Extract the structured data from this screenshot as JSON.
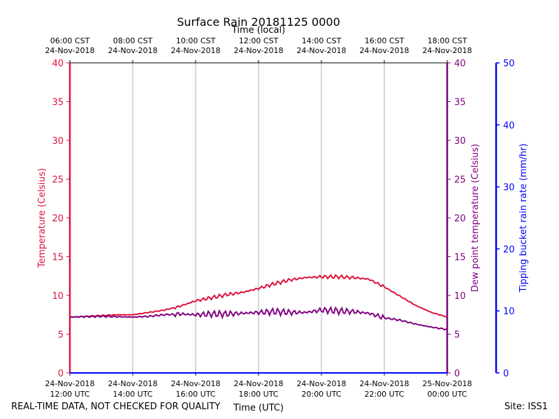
{
  "chart_data": {
    "type": "line",
    "title": "Surface Rain 20181125 0000",
    "top_axis_title": "Time (local)",
    "xlabel": "Time (UTC)",
    "top_ticks": [
      {
        "time": "06:00 CST",
        "date": "24-Nov-2018"
      },
      {
        "time": "08:00 CST",
        "date": "24-Nov-2018"
      },
      {
        "time": "10:00 CST",
        "date": "24-Nov-2018"
      },
      {
        "time": "12:00 CST",
        "date": "24-Nov-2018"
      },
      {
        "time": "14:00 CST",
        "date": "24-Nov-2018"
      },
      {
        "time": "16:00 CST",
        "date": "24-Nov-2018"
      },
      {
        "time": "18:00 CST",
        "date": "24-Nov-2018"
      }
    ],
    "bottom_ticks": [
      {
        "date": "24-Nov-2018",
        "time": "12:00 UTC"
      },
      {
        "date": "24-Nov-2018",
        "time": "14:00 UTC"
      },
      {
        "date": "24-Nov-2018",
        "time": "16:00 UTC"
      },
      {
        "date": "24-Nov-2018",
        "time": "18:00 UTC"
      },
      {
        "date": "24-Nov-2018",
        "time": "20:00 UTC"
      },
      {
        "date": "24-Nov-2018",
        "time": "22:00 UTC"
      },
      {
        "date": "25-Nov-2018",
        "time": "00:00 UTC"
      }
    ],
    "xlim_hours": [
      0,
      12
    ],
    "left_axis": {
      "label": "Temperature (Celsius)",
      "ylim": [
        0,
        40
      ],
      "ticks": [
        0,
        5,
        10,
        15,
        20,
        25,
        30,
        35,
        40
      ],
      "color": "#dc143c"
    },
    "right_axis": {
      "label": "Dew point temperature (Celsius)",
      "ylim": [
        0,
        40
      ],
      "ticks": [
        0,
        5,
        10,
        15,
        20,
        25,
        30,
        35,
        40
      ],
      "color": "#800080"
    },
    "rain_axis": {
      "label": "Tipping bucket rain rate (mm/hr)",
      "ylim": [
        0,
        50
      ],
      "ticks": [
        0,
        10,
        20,
        30,
        40,
        50
      ],
      "color": "#0000ff"
    },
    "series": [
      {
        "name": "Temperature",
        "color": "#dc143c",
        "x": [
          0,
          0.5,
          1,
          1.5,
          2,
          2.5,
          3,
          3.5,
          4,
          4.5,
          5,
          5.5,
          6,
          6.5,
          7,
          7.5,
          8,
          8.5,
          9,
          9.5,
          10,
          10.5,
          11,
          11.5,
          12
        ],
        "y": [
          7.2,
          7.3,
          7.4,
          7.5,
          7.5,
          7.8,
          8.1,
          8.6,
          9.3,
          9.7,
          10.1,
          10.4,
          10.9,
          11.5,
          12.0,
          12.3,
          12.4,
          12.4,
          12.3,
          12.1,
          11.1,
          9.9,
          8.7,
          7.8,
          7.2
        ]
      },
      {
        "name": "Dew point",
        "color": "#800080",
        "x": [
          0,
          0.5,
          1,
          1.5,
          2,
          2.5,
          3,
          3.5,
          4,
          4.5,
          5,
          5.5,
          6,
          6.5,
          7,
          7.5,
          8,
          8.5,
          9,
          9.5,
          10,
          10.5,
          11,
          11.5,
          12
        ],
        "y": [
          7.2,
          7.25,
          7.3,
          7.25,
          7.2,
          7.3,
          7.5,
          7.6,
          7.5,
          7.6,
          7.6,
          7.7,
          7.8,
          7.9,
          7.8,
          7.8,
          8.1,
          8.0,
          7.9,
          7.7,
          7.1,
          6.8,
          6.3,
          5.9,
          5.6
        ]
      },
      {
        "name": "Rain rate",
        "color": "#0000ff",
        "x": [
          0,
          12
        ],
        "y": [
          0,
          0
        ]
      }
    ]
  },
  "footer": {
    "disclaimer": "REAL-TIME DATA, NOT CHECKED FOR QUALITY",
    "site": "Site: ISS1"
  }
}
